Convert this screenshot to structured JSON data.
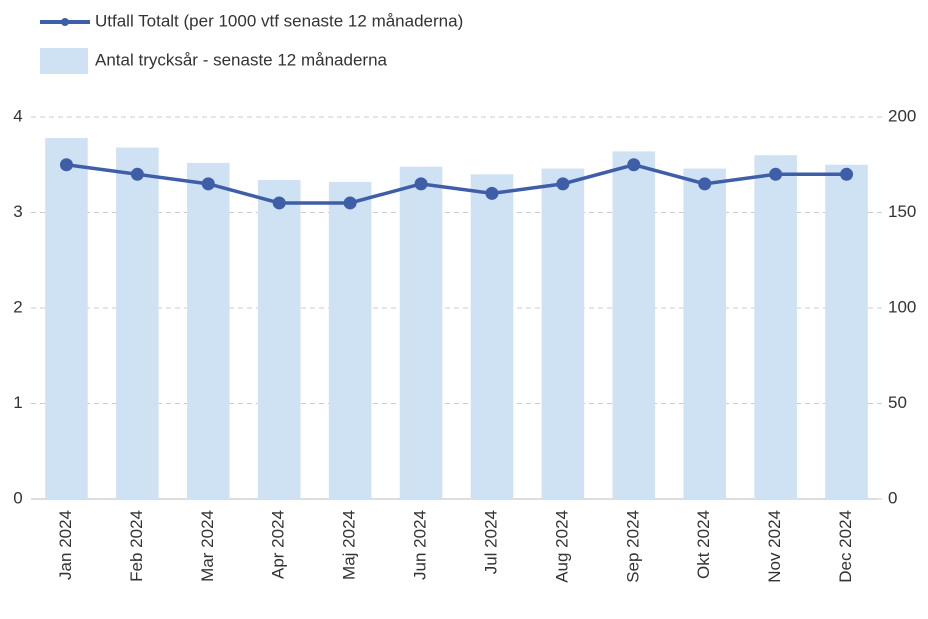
{
  "chart_data": {
    "type": "bar-line",
    "categories": [
      "Jan 2024",
      "Feb 2024",
      "Mar 2024",
      "Apr 2024",
      "Maj 2024",
      "Jun 2024",
      "Jul 2024",
      "Aug 2024",
      "Sep 2024",
      "Okt 2024",
      "Nov 2024",
      "Dec 2024"
    ],
    "series": [
      {
        "name": "Utfall Totalt (per 1000 vtf senaste 12 månaderna)",
        "type": "line",
        "color": "#3f5ea8",
        "values": [
          3.5,
          3.4,
          3.3,
          3.1,
          3.1,
          3.3,
          3.2,
          3.3,
          3.5,
          3.3,
          3.4,
          3.4
        ]
      },
      {
        "name": "Antal trycksår - senaste 12 månaderna",
        "type": "bar",
        "axis": "y2",
        "color": "#cfe2f3",
        "values": [
          189,
          184,
          176,
          167,
          166,
          174,
          170,
          173,
          182,
          173,
          180,
          175
        ]
      }
    ],
    "ylim": [
      0,
      4
    ],
    "yticks": [
      0,
      1,
      2,
      3,
      4
    ],
    "y2lim": [
      0,
      200
    ],
    "y2ticks": [
      0,
      50,
      100,
      150,
      200
    ],
    "grid": true,
    "legend": "top-left"
  }
}
